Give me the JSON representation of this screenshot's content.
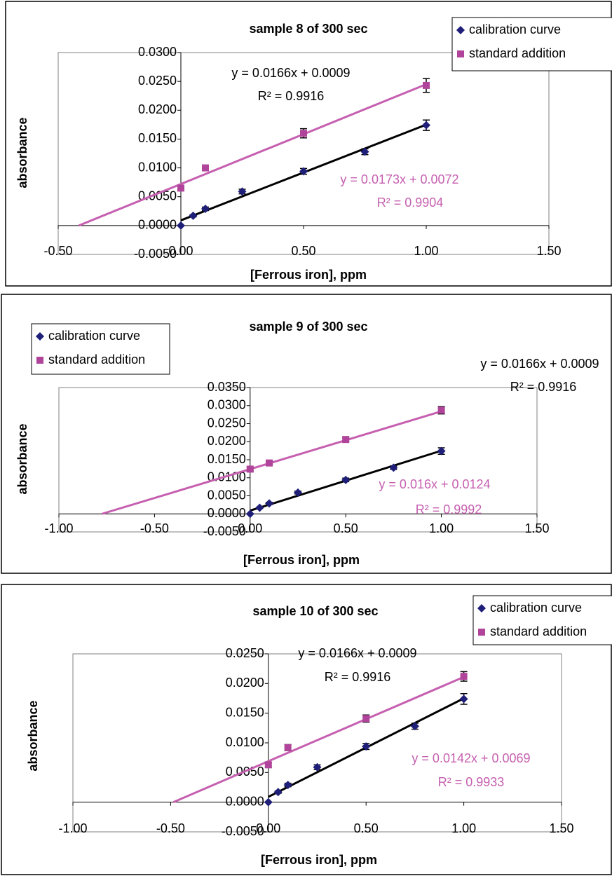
{
  "chart_data": [
    {
      "type": "scatter",
      "title": "sample 8 of 300 sec",
      "x_label": "[Ferrous iron], ppm",
      "y_label": "absorbance",
      "legend": "upper right",
      "xlim": [
        -0.5,
        1.5
      ],
      "xticks": [
        {
          "value": -0.5,
          "label": "-0.50"
        },
        {
          "value": 0,
          "label": "0.00"
        },
        {
          "value": 0.5,
          "label": "0.50"
        },
        {
          "value": 1,
          "label": "1.00"
        },
        {
          "value": 1.5,
          "label": "1.50"
        }
      ],
      "ylim": [
        -0.005,
        0.03
      ],
      "yticks": [
        {
          "value": -0.005,
          "label": "-0.0050"
        },
        {
          "value": 0,
          "label": "0.0000"
        },
        {
          "value": 0.005,
          "label": "0.0050"
        },
        {
          "value": 0.01,
          "label": "0.0100"
        },
        {
          "value": 0.015,
          "label": "0.0150"
        },
        {
          "value": 0.02,
          "label": "0.0200"
        },
        {
          "value": 0.025,
          "label": "0.0250"
        },
        {
          "value": 0.03,
          "label": "0.0300"
        }
      ],
      "series": [
        {
          "name": "calibration curve",
          "color": "#1f1f7a",
          "marker": "diamond",
          "line_color": "#000000",
          "extrapolate_to_x_axis": false,
          "x": [
            0,
            0.05,
            0.1,
            0.25,
            0.5,
            0.75,
            1.0
          ],
          "values": [
            0,
            0.0017,
            0.0029,
            0.0059,
            0.0094,
            0.0128,
            0.0174
          ],
          "errors": [
            0,
            0.0002,
            0.0003,
            0.0004,
            0.0005,
            0.0005,
            0.0009
          ],
          "trendline": {
            "slope": 0.0166,
            "intercept": 0.0009,
            "equation": "y = 0.0166x + 0.0009",
            "r_squared": "R² = 0.9916"
          }
        },
        {
          "name": "standard addition",
          "color": "#b0449a",
          "marker": "square",
          "line_color": "#c65fb0",
          "extrapolate_to_x_axis": true,
          "x": [
            0,
            0.1,
            0.5,
            1.0
          ],
          "values": [
            0.0065,
            0.01,
            0.016,
            0.0243
          ],
          "errors": [
            0.0004,
            0.0003,
            0.0008,
            0.0012
          ],
          "trendline": {
            "slope": 0.0173,
            "intercept": 0.0072,
            "equation": "y = 0.0173x + 0.0072",
            "r_squared": "R² = 0.9904"
          }
        }
      ]
    },
    {
      "type": "scatter",
      "title": "sample 9 of 300 sec",
      "x_label": "[Ferrous iron], ppm",
      "y_label": "absorbance",
      "legend": "upper left",
      "xlim": [
        -1,
        1.5
      ],
      "xticks": [
        {
          "value": -1,
          "label": "-1.00"
        },
        {
          "value": -0.5,
          "label": "-0.50"
        },
        {
          "value": 0,
          "label": "0.00"
        },
        {
          "value": 0.5,
          "label": "0.50"
        },
        {
          "value": 1,
          "label": "1.00"
        },
        {
          "value": 1.5,
          "label": "1.50"
        }
      ],
      "ylim": [
        -0.005,
        0.035
      ],
      "yticks": [
        {
          "value": -0.005,
          "label": "-0.0050"
        },
        {
          "value": 0,
          "label": "0.0000"
        },
        {
          "value": 0.005,
          "label": "0.0050"
        },
        {
          "value": 0.01,
          "label": "0.0100"
        },
        {
          "value": 0.015,
          "label": "0.0150"
        },
        {
          "value": 0.02,
          "label": "0.0200"
        },
        {
          "value": 0.025,
          "label": "0.0250"
        },
        {
          "value": 0.03,
          "label": "0.0300"
        },
        {
          "value": 0.035,
          "label": "0.0350"
        }
      ],
      "series": [
        {
          "name": "calibration curve",
          "color": "#1f1f7a",
          "marker": "diamond",
          "line_color": "#000000",
          "extrapolate_to_x_axis": false,
          "x": [
            0,
            0.05,
            0.1,
            0.25,
            0.5,
            0.75,
            1.0
          ],
          "values": [
            0,
            0.0017,
            0.0029,
            0.0059,
            0.0094,
            0.0128,
            0.0174
          ],
          "errors": [
            0,
            0.0002,
            0.0003,
            0.0004,
            0.0005,
            0.0005,
            0.0009
          ],
          "trendline": {
            "slope": 0.0166,
            "intercept": 0.0009,
            "equation": "y = 0.0166x + 0.0009",
            "r_squared": "R² = 0.9916"
          }
        },
        {
          "name": "standard addition",
          "color": "#b0449a",
          "marker": "square",
          "line_color": "#c65fb0",
          "extrapolate_to_x_axis": true,
          "x": [
            0,
            0.1,
            0.5,
            1.0
          ],
          "values": [
            0.0124,
            0.0141,
            0.0206,
            0.0287
          ],
          "errors": [
            0.0005,
            0.0004,
            0.0005,
            0.001
          ],
          "trendline": {
            "slope": 0.016,
            "intercept": 0.0124,
            "equation": "y = 0.016x + 0.0124",
            "r_squared": "R² = 0.9992"
          }
        }
      ]
    },
    {
      "type": "scatter",
      "title": "sample 10 of 300 sec",
      "x_label": "[Ferrous iron], ppm",
      "y_label": "absorbance",
      "legend": "upper right",
      "xlim": [
        -1,
        1.5
      ],
      "xticks": [
        {
          "value": -1,
          "label": "-1.00"
        },
        {
          "value": -0.5,
          "label": "-0.50"
        },
        {
          "value": 0,
          "label": "0.00"
        },
        {
          "value": 0.5,
          "label": "0.50"
        },
        {
          "value": 1,
          "label": "1.00"
        },
        {
          "value": 1.5,
          "label": "1.50"
        }
      ],
      "ylim": [
        -0.005,
        0.025
      ],
      "yticks": [
        {
          "value": -0.005,
          "label": "-0.0050"
        },
        {
          "value": 0,
          "label": "0.0000"
        },
        {
          "value": 0.005,
          "label": "0.0050"
        },
        {
          "value": 0.01,
          "label": "0.0100"
        },
        {
          "value": 0.015,
          "label": "0.0150"
        },
        {
          "value": 0.02,
          "label": "0.0200"
        },
        {
          "value": 0.025,
          "label": "0.0250"
        }
      ],
      "series": [
        {
          "name": "calibration curve",
          "color": "#1f1f7a",
          "marker": "diamond",
          "line_color": "#000000",
          "extrapolate_to_x_axis": false,
          "x": [
            0,
            0.05,
            0.1,
            0.25,
            0.5,
            0.75,
            1.0
          ],
          "values": [
            0,
            0.0017,
            0.0029,
            0.0059,
            0.0094,
            0.0128,
            0.0174
          ],
          "errors": [
            0,
            0.0002,
            0.0003,
            0.0004,
            0.0005,
            0.0005,
            0.0009
          ],
          "trendline": {
            "slope": 0.0166,
            "intercept": 0.0009,
            "equation": "y = 0.0166x + 0.0009",
            "r_squared": "R² = 0.9916"
          }
        },
        {
          "name": "standard addition",
          "color": "#b0449a",
          "marker": "square",
          "line_color": "#c65fb0",
          "extrapolate_to_x_axis": true,
          "x": [
            0,
            0.1,
            0.5,
            1.0
          ],
          "values": [
            0.0063,
            0.0092,
            0.0141,
            0.0212
          ],
          "errors": [
            0.0004,
            0.0005,
            0.0006,
            0.0008
          ],
          "trendline": {
            "slope": 0.0142,
            "intercept": 0.0069,
            "equation": "y = 0.0142x + 0.0069",
            "r_squared": "R² = 0.9933"
          }
        }
      ]
    }
  ]
}
